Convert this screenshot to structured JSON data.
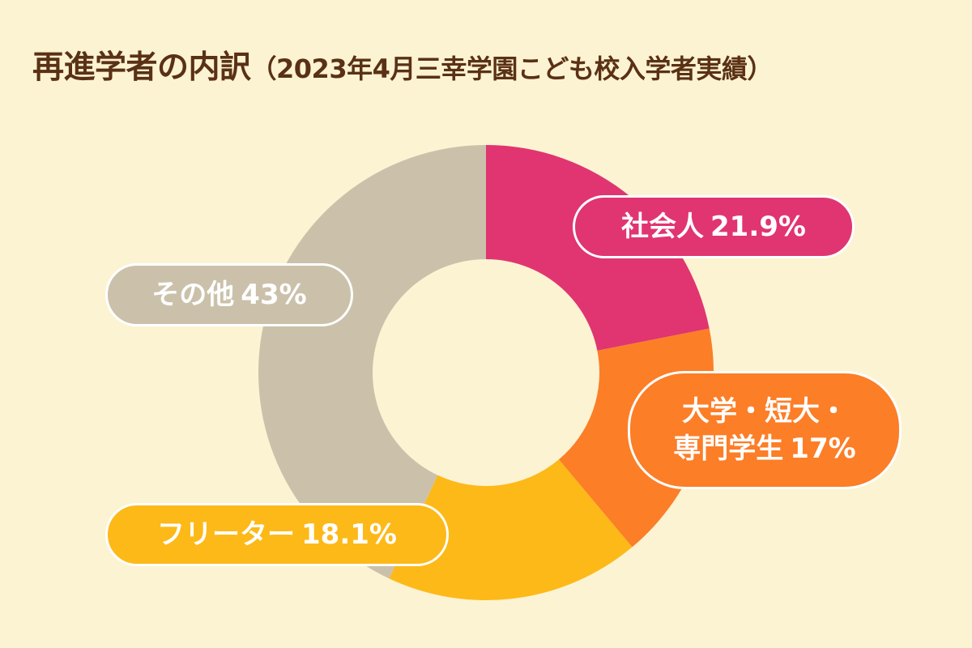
{
  "title": "再進学者の内訳",
  "subtitle": "（2023年4月三幸学園こども校入学者実績）",
  "colors": {
    "background": "#fcf3d3",
    "title": "#5a3115"
  },
  "chart_data": {
    "type": "pie",
    "donut": true,
    "title": "再進学者の内訳",
    "subtitle": "（2023年4月三幸学園こども校入学者実績）",
    "slices": [
      {
        "label": "社会人",
        "value": 21.9,
        "value_label": "21.9%",
        "color": "#e03570"
      },
      {
        "label": "大学・短大・専門学生",
        "label_line1": "大学・短大・",
        "label_line2": "専門学生",
        "value": 17,
        "value_label": "17%",
        "color": "#fc7e27"
      },
      {
        "label": "フリーター",
        "value": 18.1,
        "value_label": "18.1%",
        "color": "#fdb918"
      },
      {
        "label": "その他",
        "value": 43,
        "value_label": "43%",
        "color": "#cbc1ab"
      }
    ]
  }
}
